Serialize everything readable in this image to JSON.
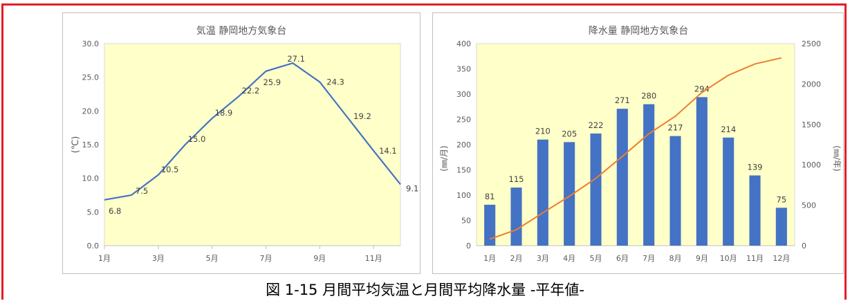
{
  "caption": "図 1-15 月間平均気温と月間平均降水量 -平年値-",
  "colors": {
    "frame": "#e31e24",
    "plot_bg": "#ffffc9",
    "temp_line": "#4472c4",
    "bar": "#4472c4",
    "cum_line": "#ed7d31"
  },
  "chart_data": [
    {
      "type": "line",
      "title": "気温 静岡地方気象台",
      "ylabel": "(℃)",
      "xlabel": "",
      "ylim": [
        0,
        30
      ],
      "y_ticks": [
        "0.0",
        "5.0",
        "10.0",
        "15.0",
        "20.0",
        "25.0",
        "30.0"
      ],
      "x_ticks": [
        "1月",
        "3月",
        "5月",
        "7月",
        "9月",
        "11月"
      ],
      "categories": [
        "1月",
        "2月",
        "3月",
        "4月",
        "5月",
        "6月",
        "7月",
        "8月",
        "9月",
        "10月",
        "11月",
        "12月"
      ],
      "values": [
        6.8,
        7.5,
        10.5,
        15.0,
        18.9,
        22.2,
        25.9,
        27.1,
        24.3,
        19.2,
        14.1,
        9.1
      ],
      "data_labels": [
        "6.8",
        "7.5",
        "10.5",
        "15.0",
        "18.9",
        "22.2",
        "25.9",
        "27.1",
        "24.3",
        "19.2",
        "14.1",
        "9.1"
      ],
      "grid": false
    },
    {
      "type": "bar",
      "title": "降水量 静岡地方気象台",
      "ylabel": "(㎜/月)",
      "y2label": "(㎜/年)",
      "ylim": [
        0,
        400
      ],
      "y2lim": [
        0,
        2500
      ],
      "y_ticks": [
        "0",
        "50",
        "100",
        "150",
        "200",
        "250",
        "300",
        "350",
        "400"
      ],
      "y2_ticks": [
        "0",
        "500",
        "1000",
        "1500",
        "2000",
        "2500"
      ],
      "categories": [
        "1月",
        "2月",
        "3月",
        "4月",
        "5月",
        "6月",
        "7月",
        "8月",
        "9月",
        "10月",
        "11月",
        "12月"
      ],
      "values": [
        81,
        115,
        210,
        205,
        222,
        271,
        280,
        217,
        294,
        214,
        139,
        75
      ],
      "data_labels": [
        "81",
        "115",
        "210",
        "205",
        "222",
        "271",
        "280",
        "217",
        "294",
        "214",
        "139",
        "75"
      ],
      "cumulative": [
        81,
        196,
        406,
        611,
        833,
        1104,
        1384,
        1601,
        1895,
        2109,
        2248,
        2323
      ],
      "grid": false
    }
  ]
}
